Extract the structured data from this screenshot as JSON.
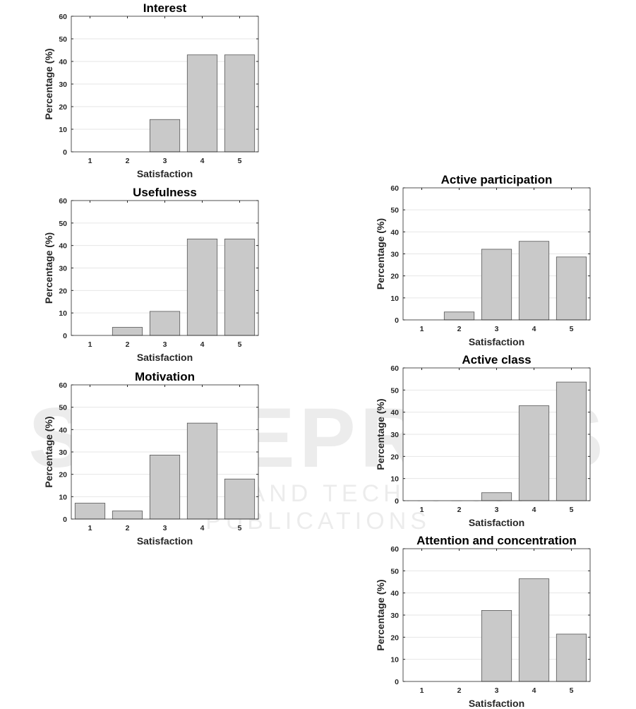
{
  "watermark": {
    "main": "SCITEPRESS",
    "sub": "SCIENCE AND TECHNOLOGY PUBLICATIONS"
  },
  "chart_data": [
    {
      "type": "bar",
      "title": "Interest",
      "xlabel": "Satisfaction",
      "ylabel": "Percentage (%)",
      "categories": [
        "1",
        "2",
        "3",
        "4",
        "5"
      ],
      "values": [
        0,
        0,
        14.3,
        42.9,
        42.9
      ],
      "ylim": [
        0,
        60
      ],
      "yticks": [
        "0",
        "10",
        "20",
        "30",
        "40",
        "50",
        "60"
      ],
      "grid": true
    },
    {
      "type": "bar",
      "title": "Usefulness",
      "xlabel": "Satisfaction",
      "ylabel": "Percentage (%)",
      "categories": [
        "1",
        "2",
        "3",
        "4",
        "5"
      ],
      "values": [
        0,
        3.6,
        10.7,
        42.9,
        42.9
      ],
      "ylim": [
        0,
        60
      ],
      "yticks": [
        "0",
        "10",
        "20",
        "30",
        "40",
        "50",
        "60"
      ],
      "grid": true
    },
    {
      "type": "bar",
      "title": "Motivation",
      "xlabel": "Satisfaction",
      "ylabel": "Percentage (%)",
      "categories": [
        "1",
        "2",
        "3",
        "4",
        "5"
      ],
      "values": [
        7.1,
        3.6,
        28.6,
        42.9,
        17.9
      ],
      "ylim": [
        0,
        60
      ],
      "yticks": [
        "0",
        "10",
        "20",
        "30",
        "40",
        "50",
        "60"
      ],
      "grid": true
    },
    {
      "type": "bar",
      "title": "Active participation",
      "xlabel": "Satisfaction",
      "ylabel": "Percentage (%)",
      "categories": [
        "1",
        "2",
        "3",
        "4",
        "5"
      ],
      "values": [
        0,
        3.6,
        32.1,
        35.7,
        28.6
      ],
      "ylim": [
        0,
        60
      ],
      "yticks": [
        "0",
        "10",
        "20",
        "30",
        "40",
        "50",
        "60"
      ],
      "grid": true
    },
    {
      "type": "bar",
      "title": "Active class",
      "xlabel": "Satisfaction",
      "ylabel": "Percentage (%)",
      "categories": [
        "1",
        "2",
        "3",
        "4",
        "5"
      ],
      "values": [
        0,
        0,
        3.6,
        42.9,
        53.6
      ],
      "ylim": [
        0,
        60
      ],
      "yticks": [
        "0",
        "10",
        "20",
        "30",
        "40",
        "50",
        "60"
      ],
      "grid": true
    },
    {
      "type": "bar",
      "title": "Attention and concentration",
      "xlabel": "Satisfaction",
      "ylabel": "Percentage (%)",
      "categories": [
        "1",
        "2",
        "3",
        "4",
        "5"
      ],
      "values": [
        0,
        0,
        32.1,
        46.4,
        21.4
      ],
      "ylim": [
        0,
        60
      ],
      "yticks": [
        "0",
        "10",
        "20",
        "30",
        "40",
        "50",
        "60"
      ],
      "grid": true
    }
  ],
  "colors": {
    "bar": "#c9c9c9",
    "bar_edge": "#555555",
    "grid": "#e6e6e6",
    "axis": "#262626"
  }
}
